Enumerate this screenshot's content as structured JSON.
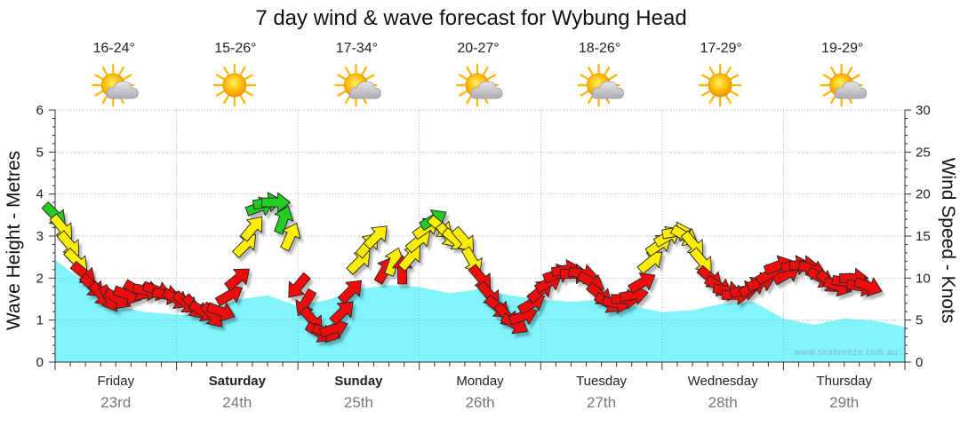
{
  "chart_data": {
    "type": "area",
    "title": "7 day wind & wave forecast for Wybung Head",
    "left_axis": {
      "label": "Wave Height - Metres",
      "min": 0,
      "max": 6,
      "ticks": [
        "0",
        "1",
        "2",
        "3",
        "4",
        "5",
        "6"
      ]
    },
    "right_axis": {
      "label": "Wind Speed - Knots",
      "min": 0,
      "max": 30,
      "ticks": [
        "0",
        "5",
        "10",
        "15",
        "20",
        "25",
        "30"
      ]
    },
    "grid": true,
    "days": [
      {
        "name": "Friday",
        "date": "23rd",
        "temp": "16-24°",
        "weather": "partly-cloudy-icon",
        "bold": false
      },
      {
        "name": "Saturday",
        "date": "24th",
        "temp": "15-26°",
        "weather": "sunny-icon",
        "bold": true
      },
      {
        "name": "Sunday",
        "date": "25th",
        "temp": "17-34°",
        "weather": "partly-cloudy-icon",
        "bold": true
      },
      {
        "name": "Monday",
        "date": "26th",
        "temp": "20-27°",
        "weather": "partly-cloudy-icon",
        "bold": false
      },
      {
        "name": "Tuesday",
        "date": "27th",
        "temp": "18-26°",
        "weather": "partly-cloudy-icon",
        "bold": false
      },
      {
        "name": "Wednesday",
        "date": "28th",
        "temp": "17-29°",
        "weather": "sunny-icon",
        "bold": false
      },
      {
        "name": "Thursday",
        "date": "29th",
        "temp": "19-29°",
        "weather": "partly-cloudy-icon",
        "bold": false
      }
    ],
    "wave_series": {
      "unit": "metres",
      "x_days": [
        0,
        0.25,
        0.5,
        0.75,
        1,
        1.25,
        1.5,
        1.75,
        2,
        2.25,
        2.5,
        2.75,
        3,
        3.25,
        3.5,
        3.75,
        4,
        4.25,
        4.5,
        4.75,
        5,
        5.25,
        5.5,
        5.75,
        6,
        6.25,
        6.5,
        6.75,
        7
      ],
      "values": [
        2.45,
        1.9,
        1.35,
        1.2,
        1.15,
        1.1,
        1.5,
        1.6,
        1.35,
        1.5,
        1.75,
        1.85,
        1.8,
        1.65,
        1.75,
        1.6,
        1.5,
        1.45,
        1.5,
        1.35,
        1.2,
        1.25,
        1.4,
        1.45,
        1.05,
        0.9,
        1.05,
        1.0,
        0.85
      ]
    },
    "wind_series": {
      "unit": "knots",
      "color_bands": [
        {
          "max": 12,
          "color": "#ee1111"
        },
        {
          "max": 17,
          "color": "#ffee00"
        },
        {
          "max": 40,
          "color": "#22cc22"
        }
      ],
      "arrows": [
        {
          "x": 0.0,
          "y": 17.5,
          "dir": 315
        },
        {
          "x": 0.06,
          "y": 16,
          "dir": 320
        },
        {
          "x": 0.12,
          "y": 14,
          "dir": 320
        },
        {
          "x": 0.18,
          "y": 12,
          "dir": 315
        },
        {
          "x": 0.24,
          "y": 10.5,
          "dir": 310
        },
        {
          "x": 0.31,
          "y": 9,
          "dir": 315
        },
        {
          "x": 0.38,
          "y": 8,
          "dir": 320
        },
        {
          "x": 0.45,
          "y": 7.5,
          "dir": 330
        },
        {
          "x": 0.52,
          "y": 7.5,
          "dir": 300
        },
        {
          "x": 0.6,
          "y": 8,
          "dir": 290
        },
        {
          "x": 0.68,
          "y": 8.5,
          "dir": 300
        },
        {
          "x": 0.76,
          "y": 8.5,
          "dir": 280
        },
        {
          "x": 0.84,
          "y": 8.5,
          "dir": 290
        },
        {
          "x": 0.92,
          "y": 8,
          "dir": 280
        },
        {
          "x": 1.0,
          "y": 7.5,
          "dir": 300
        },
        {
          "x": 1.08,
          "y": 7,
          "dir": 310
        },
        {
          "x": 1.15,
          "y": 6.5,
          "dir": 320
        },
        {
          "x": 1.22,
          "y": 6,
          "dir": 300
        },
        {
          "x": 1.3,
          "y": 5.5,
          "dir": 320
        },
        {
          "x": 1.37,
          "y": 6,
          "dir": 290
        },
        {
          "x": 1.44,
          "y": 8,
          "dir": 240
        },
        {
          "x": 1.51,
          "y": 10,
          "dir": 230
        },
        {
          "x": 1.57,
          "y": 14,
          "dir": 225
        },
        {
          "x": 1.63,
          "y": 16,
          "dir": 220
        },
        {
          "x": 1.69,
          "y": 18.5,
          "dir": 250
        },
        {
          "x": 1.75,
          "y": 19,
          "dir": 260
        },
        {
          "x": 1.82,
          "y": 19,
          "dir": 270
        },
        {
          "x": 1.88,
          "y": 17,
          "dir": 200
        },
        {
          "x": 1.94,
          "y": 15,
          "dir": 205
        },
        {
          "x": 2.0,
          "y": 9,
          "dir": 40
        },
        {
          "x": 2.06,
          "y": 7,
          "dir": 30
        },
        {
          "x": 2.12,
          "y": 5,
          "dir": 320
        },
        {
          "x": 2.18,
          "y": 3.5,
          "dir": 300
        },
        {
          "x": 2.24,
          "y": 3.5,
          "dir": 290
        },
        {
          "x": 2.3,
          "y": 4,
          "dir": 250
        },
        {
          "x": 2.37,
          "y": 6,
          "dir": 225
        },
        {
          "x": 2.44,
          "y": 8.5,
          "dir": 225
        },
        {
          "x": 2.51,
          "y": 12,
          "dir": 225
        },
        {
          "x": 2.58,
          "y": 14,
          "dir": 220
        },
        {
          "x": 2.65,
          "y": 15,
          "dir": 225
        },
        {
          "x": 2.72,
          "y": 11,
          "dir": 210
        },
        {
          "x": 2.79,
          "y": 12,
          "dir": 200
        },
        {
          "x": 2.86,
          "y": 11,
          "dir": 180
        },
        {
          "x": 2.93,
          "y": 12.5,
          "dir": 220
        },
        {
          "x": 3.0,
          "y": 14.5,
          "dir": 230
        },
        {
          "x": 3.06,
          "y": 16,
          "dir": 235
        },
        {
          "x": 3.12,
          "y": 17,
          "dir": 240
        },
        {
          "x": 3.18,
          "y": 16,
          "dir": 310
        },
        {
          "x": 3.24,
          "y": 15,
          "dir": 320
        },
        {
          "x": 3.3,
          "y": 14.5,
          "dir": 310
        },
        {
          "x": 3.37,
          "y": 14.5,
          "dir": 320
        },
        {
          "x": 3.44,
          "y": 12,
          "dir": 330
        },
        {
          "x": 3.51,
          "y": 10,
          "dir": 320
        },
        {
          "x": 3.58,
          "y": 8,
          "dir": 320
        },
        {
          "x": 3.65,
          "y": 6.5,
          "dir": 310
        },
        {
          "x": 3.72,
          "y": 5.5,
          "dir": 320
        },
        {
          "x": 3.79,
          "y": 4.5,
          "dir": 300
        },
        {
          "x": 3.86,
          "y": 5.5,
          "dir": 250
        },
        {
          "x": 3.93,
          "y": 7,
          "dir": 240
        },
        {
          "x": 4.0,
          "y": 8.5,
          "dir": 230
        },
        {
          "x": 4.07,
          "y": 9.5,
          "dir": 240
        },
        {
          "x": 4.14,
          "y": 10.5,
          "dir": 250
        },
        {
          "x": 4.21,
          "y": 11,
          "dir": 260
        },
        {
          "x": 4.28,
          "y": 10.5,
          "dir": 270
        },
        {
          "x": 4.35,
          "y": 10.5,
          "dir": 280
        },
        {
          "x": 4.42,
          "y": 9.5,
          "dir": 300
        },
        {
          "x": 4.49,
          "y": 8,
          "dir": 310
        },
        {
          "x": 4.56,
          "y": 7,
          "dir": 300
        },
        {
          "x": 4.63,
          "y": 7,
          "dir": 280
        },
        {
          "x": 4.7,
          "y": 7.5,
          "dir": 270
        },
        {
          "x": 4.77,
          "y": 8,
          "dir": 260
        },
        {
          "x": 4.84,
          "y": 9.5,
          "dir": 240
        },
        {
          "x": 4.91,
          "y": 12,
          "dir": 230
        },
        {
          "x": 4.98,
          "y": 14,
          "dir": 235
        },
        {
          "x": 5.05,
          "y": 15,
          "dir": 240
        },
        {
          "x": 5.12,
          "y": 15.5,
          "dir": 260
        },
        {
          "x": 5.19,
          "y": 15,
          "dir": 300
        },
        {
          "x": 5.26,
          "y": 14,
          "dir": 320
        },
        {
          "x": 5.33,
          "y": 12,
          "dir": 320
        },
        {
          "x": 5.4,
          "y": 10,
          "dir": 310
        },
        {
          "x": 5.47,
          "y": 9,
          "dir": 300
        },
        {
          "x": 5.54,
          "y": 8.5,
          "dir": 280
        },
        {
          "x": 5.61,
          "y": 8,
          "dir": 270
        },
        {
          "x": 5.68,
          "y": 8.5,
          "dir": 260
        },
        {
          "x": 5.75,
          "y": 9,
          "dir": 240
        },
        {
          "x": 5.82,
          "y": 9.5,
          "dir": 250
        },
        {
          "x": 5.89,
          "y": 10.5,
          "dir": 240
        },
        {
          "x": 5.96,
          "y": 11.5,
          "dir": 250
        },
        {
          "x": 6.03,
          "y": 10.5,
          "dir": 240
        },
        {
          "x": 6.1,
          "y": 11.5,
          "dir": 260
        },
        {
          "x": 6.17,
          "y": 11.5,
          "dir": 270
        },
        {
          "x": 6.24,
          "y": 11,
          "dir": 290
        },
        {
          "x": 6.31,
          "y": 10,
          "dir": 300
        },
        {
          "x": 6.38,
          "y": 9.5,
          "dir": 310
        },
        {
          "x": 6.45,
          "y": 9,
          "dir": 290
        },
        {
          "x": 6.52,
          "y": 9.5,
          "dir": 280
        },
        {
          "x": 6.58,
          "y": 10,
          "dir": 270
        },
        {
          "x": 6.64,
          "y": 9,
          "dir": 280
        },
        {
          "x": 6.7,
          "y": 9,
          "dir": 290
        }
      ]
    },
    "watermark": "www.seabreeze.com.au"
  },
  "colors": {
    "wave_fill": "#80f3fb",
    "wave_edge": "#ffffff",
    "grid": "#999999",
    "day_label": "#222222",
    "date_label": "#777777",
    "sun": "#ffb400",
    "cloud": "#c8c8cc",
    "watermark": "#7fb7c7"
  }
}
